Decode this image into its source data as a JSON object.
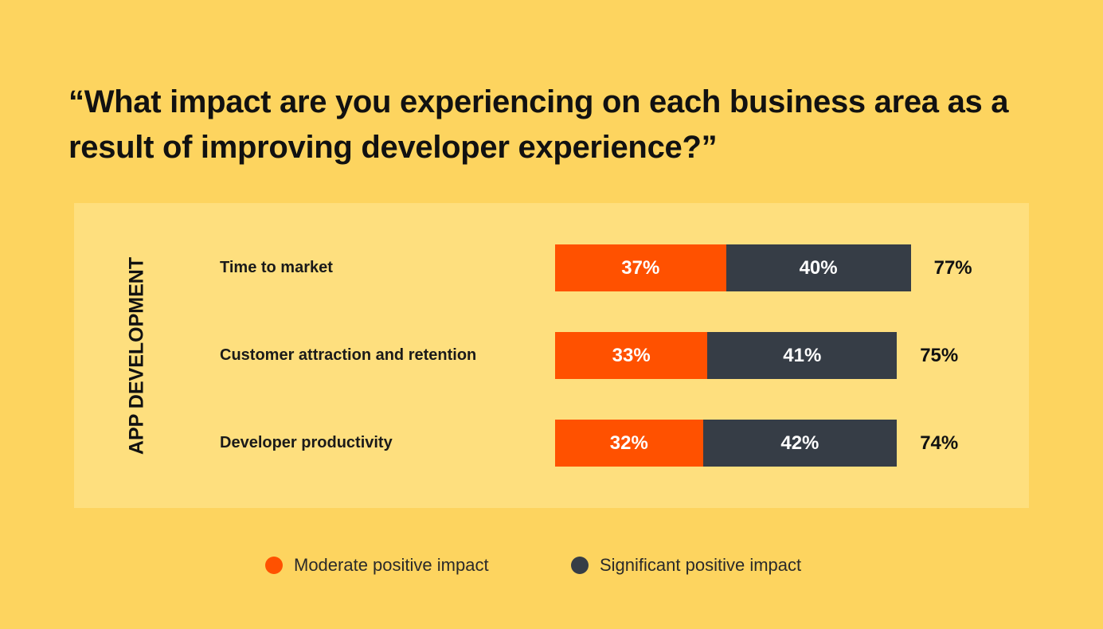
{
  "chart_data": {
    "type": "bar",
    "orientation": "horizontal",
    "stacked": true,
    "title": "“What impact are you experiencing on each business area as a result of improving developer experience?”",
    "group_label": "APP DEVELOPMENT",
    "categories": [
      "Time to market",
      "Customer attraction and retention",
      "Developer productivity"
    ],
    "series": [
      {
        "name": "Moderate positive impact",
        "color": "#FF5100",
        "values": [
          37,
          33,
          32
        ],
        "labels": [
          "37%",
          "33%",
          "32%"
        ]
      },
      {
        "name": "Significant positive impact",
        "color": "#363D46",
        "values": [
          40,
          41,
          42
        ],
        "labels": [
          "40%",
          "41%",
          "42%"
        ]
      }
    ],
    "totals": [
      "77%",
      "75%",
      "74%"
    ],
    "legend_position": "bottom",
    "grid": false
  }
}
